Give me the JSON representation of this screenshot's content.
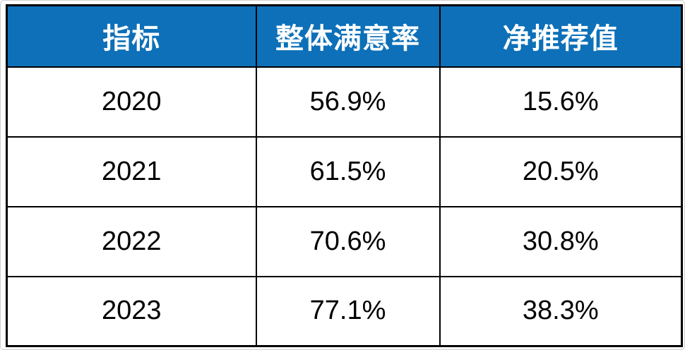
{
  "colors": {
    "header_background": "#0d70b8",
    "header_text": "#ffffff",
    "cell_text": "#000000",
    "grid_border": "#000000"
  },
  "table": {
    "headers": [
      "指标",
      "整体满意率",
      "净推荐值"
    ],
    "rows": [
      [
        "2020",
        "56.9%",
        "15.6%"
      ],
      [
        "2021",
        "61.5%",
        "20.5%"
      ],
      [
        "2022",
        "70.6%",
        "30.8%"
      ],
      [
        "2023",
        "77.1%",
        "38.3%"
      ]
    ]
  },
  "chart_data": {
    "type": "table",
    "title": "",
    "columns": [
      "指标",
      "整体满意率",
      "净推荐值"
    ],
    "categories": [
      "2020",
      "2021",
      "2022",
      "2023"
    ],
    "series": [
      {
        "name": "整体满意率",
        "unit": "%",
        "values": [
          56.9,
          61.5,
          70.6,
          77.1
        ]
      },
      {
        "name": "净推荐值",
        "unit": "%",
        "values": [
          15.6,
          20.5,
          30.8,
          38.3
        ]
      }
    ],
    "layout": {
      "header_fill": "#0d70b8",
      "grid": true
    }
  }
}
